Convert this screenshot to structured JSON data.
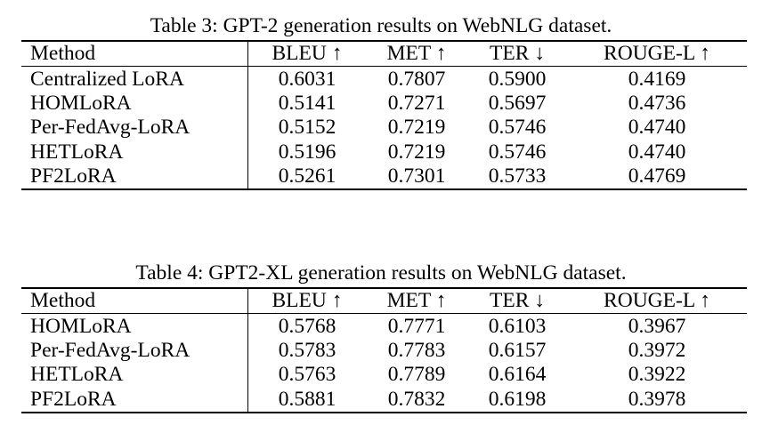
{
  "table3": {
    "caption": "Table 3: GPT-2 generation results on WebNLG dataset.",
    "headers": [
      "Method",
      "BLEU ↑",
      "MET ↑",
      "TER ↓",
      "ROUGE-L ↑"
    ],
    "rows": [
      {
        "method": "Centralized LoRA",
        "bleu": "0.6031",
        "met": "0.7807",
        "ter": "0.5900",
        "rouge": "0.4169",
        "bold": []
      },
      {
        "method": "HOMLoRA",
        "bleu": "0.5141",
        "met": "0.7271",
        "ter": "0.5697",
        "rouge": "0.4736",
        "bold": [
          "ter"
        ]
      },
      {
        "method": "Per-FedAvg-LoRA",
        "bleu": "0.5152",
        "met": "0.7219",
        "ter": "0.5746",
        "rouge": "0.4740",
        "bold": []
      },
      {
        "method": "HETLoRA",
        "bleu": "0.5196",
        "met": "0.7219",
        "ter": "0.5746",
        "rouge": "0.4740",
        "bold": []
      },
      {
        "method": "PF2LoRA",
        "bleu": "0.5261",
        "met": "0.7301",
        "ter": "0.5733",
        "rouge": "0.4769",
        "bold": [
          "bleu",
          "met",
          "rouge"
        ]
      }
    ]
  },
  "table4": {
    "caption": "Table 4: GPT2-XL generation results on WebNLG dataset.",
    "headers": [
      "Method",
      "BLEU ↑",
      "MET ↑",
      "TER ↓",
      "ROUGE-L ↑"
    ],
    "rows": [
      {
        "method": "HOMLoRA",
        "bleu": "0.5768",
        "met": "0.7771",
        "ter": "0.6103",
        "rouge": "0.3967",
        "bold": [
          "ter"
        ]
      },
      {
        "method": "Per-FedAvg-LoRA",
        "bleu": "0.5783",
        "met": "0.7783",
        "ter": "0.6157",
        "rouge": "0.3972",
        "bold": []
      },
      {
        "method": "HETLoRA",
        "bleu": "0.5763",
        "met": "0.7789",
        "ter": "0.6164",
        "rouge": "0.3922",
        "bold": []
      },
      {
        "method": "PF2LoRA",
        "bleu": "0.5881",
        "met": "0.7832",
        "ter": "0.6198",
        "rouge": "0.3978",
        "bold": [
          "bleu",
          "met",
          "rouge"
        ]
      }
    ]
  }
}
